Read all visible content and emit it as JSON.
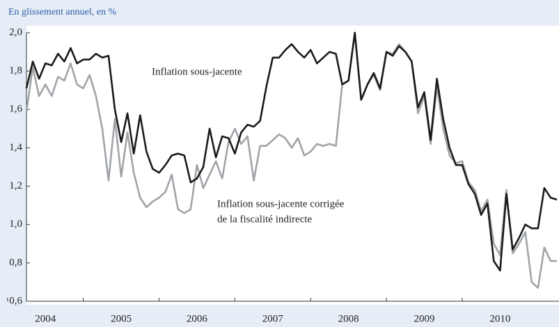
{
  "chart_data": {
    "type": "line",
    "subtitle": "En glissement annuel, en %",
    "categories": [
      null,
      null,
      null,
      "2004",
      null,
      null,
      null,
      null,
      null,
      null,
      null,
      null,
      null,
      null,
      null,
      "2005",
      null,
      null,
      null,
      null,
      null,
      null,
      null,
      null,
      null,
      null,
      null,
      "2006",
      null,
      null,
      null,
      null,
      null,
      null,
      null,
      null,
      null,
      null,
      null,
      "2007",
      null,
      null,
      null,
      null,
      null,
      null,
      null,
      null,
      null,
      null,
      null,
      "2008",
      null,
      null,
      null,
      null,
      null,
      null,
      null,
      null,
      null,
      null,
      null,
      "2009",
      null,
      null,
      null,
      null,
      null,
      null,
      null,
      null,
      null,
      null,
      null,
      "2010",
      null,
      null,
      null,
      null,
      null,
      null,
      null,
      null,
      null
    ],
    "series": [
      {
        "name": "Inflation sous-jacente",
        "color": "#1a1a1a",
        "values": [
          1.71,
          1.85,
          1.76,
          1.84,
          1.83,
          1.89,
          1.85,
          1.92,
          1.84,
          1.86,
          1.86,
          1.89,
          1.87,
          1.88,
          1.6,
          1.43,
          1.58,
          1.37,
          1.57,
          1.38,
          1.29,
          1.27,
          1.31,
          1.36,
          1.37,
          1.36,
          1.22,
          1.24,
          1.3,
          1.5,
          1.35,
          1.46,
          1.45,
          1.37,
          1.48,
          1.52,
          1.51,
          1.54,
          1.72,
          1.87,
          1.87,
          1.91,
          1.94,
          1.9,
          1.87,
          1.91,
          1.84,
          1.87,
          1.9,
          1.89,
          1.73,
          1.75,
          2.0,
          1.65,
          1.73,
          1.79,
          1.71,
          1.9,
          1.88,
          1.93,
          1.9,
          1.85,
          1.61,
          1.69,
          1.44,
          1.76,
          1.55,
          1.4,
          1.31,
          1.31,
          1.21,
          1.16,
          1.05,
          1.11,
          0.81,
          0.76,
          1.16,
          0.87,
          0.93,
          1.0,
          0.98,
          0.98,
          1.19,
          1.14,
          1.13
        ]
      },
      {
        "name_lines": [
          "Inflation sous-jacente corrigée",
          "de la fiscalité indirecte"
        ],
        "color": "#a0a4a8",
        "values": [
          1.59,
          1.82,
          1.67,
          1.73,
          1.67,
          1.77,
          1.75,
          1.84,
          1.73,
          1.71,
          1.78,
          1.67,
          1.5,
          1.23,
          1.55,
          1.25,
          1.48,
          1.27,
          1.14,
          1.09,
          1.12,
          1.14,
          1.17,
          1.26,
          1.08,
          1.06,
          1.08,
          1.31,
          1.19,
          1.26,
          1.33,
          1.24,
          1.43,
          1.5,
          1.42,
          1.46,
          1.23,
          1.41,
          1.41,
          1.44,
          1.47,
          1.45,
          1.4,
          1.45,
          1.36,
          1.38,
          1.42,
          1.41,
          1.42,
          1.41,
          1.73,
          1.75,
          2.0,
          1.65,
          1.73,
          1.78,
          1.7,
          1.9,
          1.89,
          1.94,
          1.9,
          1.85,
          1.58,
          1.67,
          1.42,
          1.72,
          1.5,
          1.36,
          1.32,
          1.33,
          1.22,
          1.18,
          1.07,
          1.13,
          0.9,
          0.84,
          1.18,
          0.85,
          0.9,
          0.96,
          0.7,
          0.67,
          0.88,
          0.81,
          0.81
        ]
      }
    ],
    "ylim": [
      0.6,
      2.0
    ],
    "yticks": [
      {
        "value": 0.6,
        "label": "0,6"
      },
      {
        "value": 0.8,
        "label": "0,8"
      },
      {
        "value": 1.0,
        "label": "1,0"
      },
      {
        "value": 1.2,
        "label": "1,2"
      },
      {
        "value": 1.4,
        "label": "1,4"
      },
      {
        "value": 1.6,
        "label": "1,6"
      },
      {
        "value": 1.8,
        "label": "1,8"
      },
      {
        "value": 2.0,
        "label": "2,0"
      }
    ]
  }
}
